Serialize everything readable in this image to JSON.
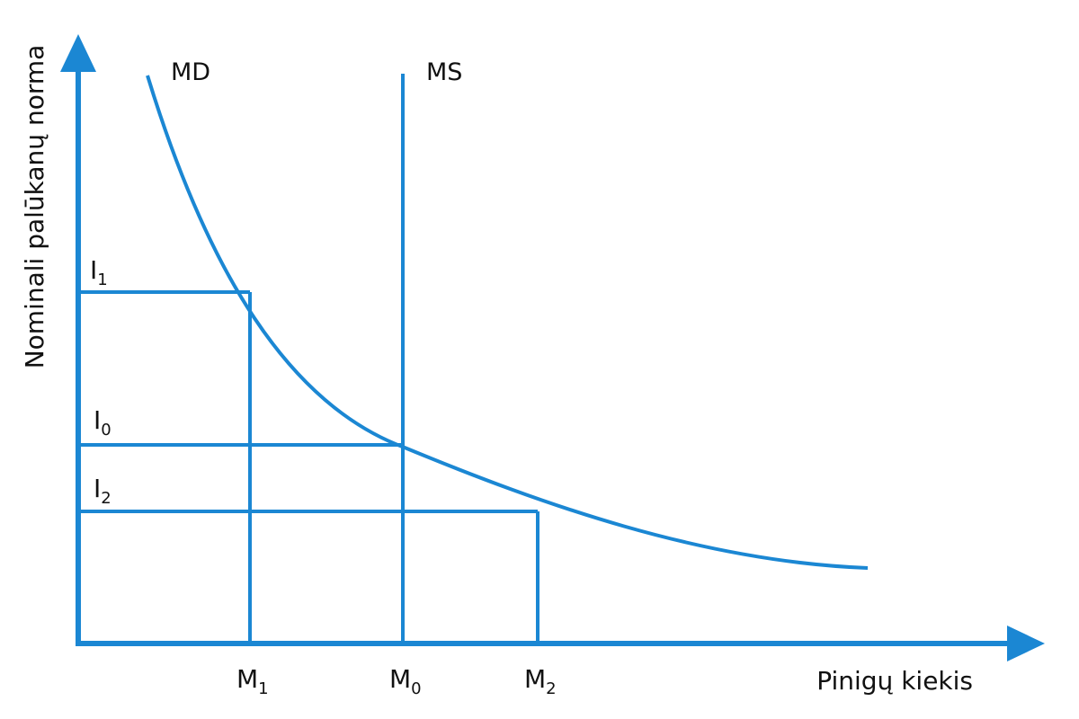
{
  "colors": {
    "line": "#1b87d3",
    "text": "#111111",
    "background": "#ffffff"
  },
  "curves": {
    "demand_label": "MD",
    "supply_label": "MS"
  },
  "axes": {
    "x_title": "Pinigų kiekis",
    "y_title": "Nominali palūkanų norma"
  },
  "interest_levels": [
    {
      "base": "I",
      "sub": "1"
    },
    {
      "base": "I",
      "sub": "0"
    },
    {
      "base": "I",
      "sub": "2"
    }
  ],
  "money_levels": [
    {
      "base": "M",
      "sub": "1"
    },
    {
      "base": "M",
      "sub": "0"
    },
    {
      "base": "M",
      "sub": "2"
    }
  ]
}
